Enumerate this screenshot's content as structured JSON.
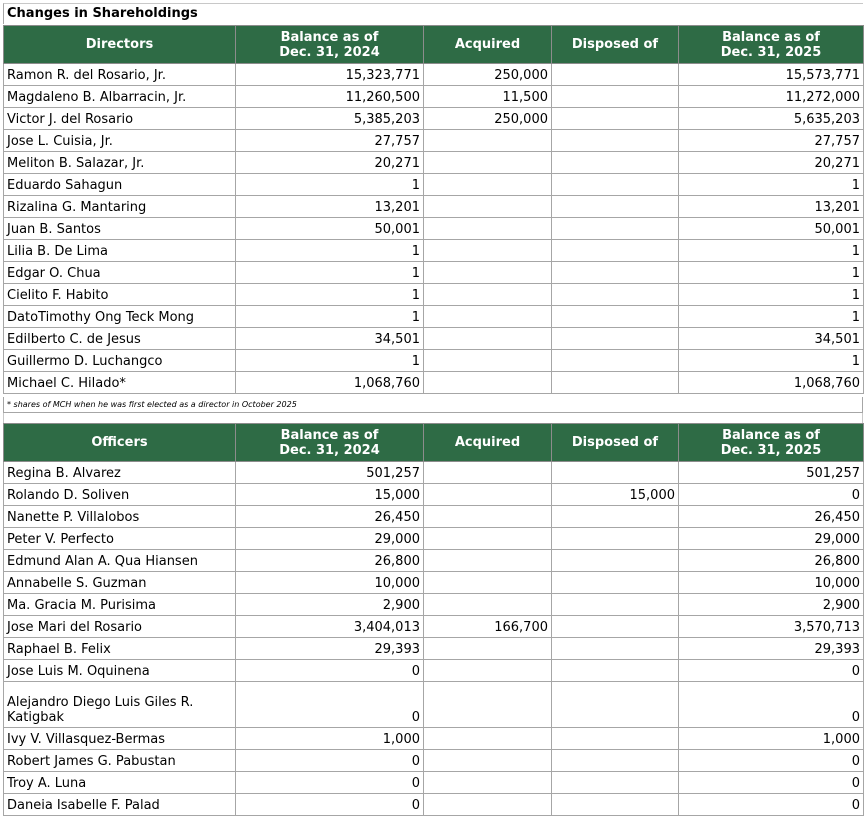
{
  "title": "Changes in Shareholdings",
  "directors": {
    "headers": [
      "Directors",
      "Balance as of\nDec. 31, 2024",
      "Acquired",
      "Disposed of",
      "Balance as of\nDec. 31, 2025"
    ],
    "rows": [
      [
        "Ramon R. del Rosario, Jr.",
        "15,323,771",
        "250,000",
        "",
        "15,573,771"
      ],
      [
        "Magdaleno B. Albarracin, Jr.",
        "11,260,500",
        "11,500",
        "",
        "11,272,000"
      ],
      [
        "Victor J. del Rosario",
        "5,385,203",
        "250,000",
        "",
        "5,635,203"
      ],
      [
        "Jose L. Cuisia, Jr.",
        "27,757",
        "",
        "",
        "27,757"
      ],
      [
        "Meliton B. Salazar, Jr.",
        "20,271",
        "",
        "",
        "20,271"
      ],
      [
        "Eduardo Sahagun",
        "1",
        "",
        "",
        "1"
      ],
      [
        "Rizalina G. Mantaring",
        "13,201",
        "",
        "",
        "13,201"
      ],
      [
        "Juan B. Santos",
        "50,001",
        "",
        "",
        "50,001"
      ],
      [
        "Lilia B. De Lima",
        "1",
        "",
        "",
        "1"
      ],
      [
        "Edgar O. Chua",
        "1",
        "",
        "",
        "1"
      ],
      [
        "Cielito F. Habito",
        "1",
        "",
        "",
        "1"
      ],
      [
        "DatoTimothy Ong Teck Mong",
        "1",
        "",
        "",
        "1"
      ],
      [
        "Edilberto C. de Jesus",
        "34,501",
        "",
        "",
        "34,501"
      ],
      [
        "Guillermo D. Luchangco",
        "1",
        "",
        "",
        "1"
      ],
      [
        "Michael C. Hilado*",
        "1,068,760",
        "",
        "",
        "1,068,760"
      ]
    ],
    "footnote": "* shares of MCH when he was first elected as a director in October 2025"
  },
  "officers": {
    "headers": [
      "Officers",
      "Balance as of\nDec. 31, 2024",
      "Acquired",
      "Disposed of",
      "Balance as of\nDec. 31, 2025"
    ],
    "rows": [
      [
        "Regina B. Alvarez",
        "501,257",
        "",
        "",
        "501,257"
      ],
      [
        "Rolando D. Soliven",
        "15,000",
        "",
        "15,000",
        "0"
      ],
      [
        "Nanette P. Villalobos",
        "26,450",
        "",
        "",
        "26,450"
      ],
      [
        "Peter V. Perfecto",
        "29,000",
        "",
        "",
        "29,000"
      ],
      [
        "Edmund Alan A. Qua Hiansen",
        "26,800",
        "",
        "",
        "26,800"
      ],
      [
        "Annabelle S. Guzman",
        "10,000",
        "",
        "",
        "10,000"
      ],
      [
        "Ma. Gracia M. Purisima",
        "2,900",
        "",
        "",
        "2,900"
      ],
      [
        "Jose Mari del Rosario",
        "3,404,013",
        "166,700",
        "",
        "3,570,713"
      ],
      [
        "Raphael B. Felix",
        "29,393",
        "",
        "",
        "29,393"
      ],
      [
        "Jose Luis M. Oquinena",
        "0",
        "",
        "",
        "0"
      ],
      [
        "Alejandro Diego Luis Giles R. Katigbak",
        "0",
        "",
        "",
        "0"
      ],
      [
        "Ivy V. Villasquez-Bermas",
        "1,000",
        "",
        "",
        "1,000"
      ],
      [
        "Robert James G. Pabustan",
        "0",
        "",
        "",
        "0"
      ],
      [
        "Troy A. Luna",
        "0",
        "",
        "",
        "0"
      ],
      [
        "Daneia Isabelle F. Palad",
        "0",
        "",
        "",
        "0"
      ]
    ]
  }
}
